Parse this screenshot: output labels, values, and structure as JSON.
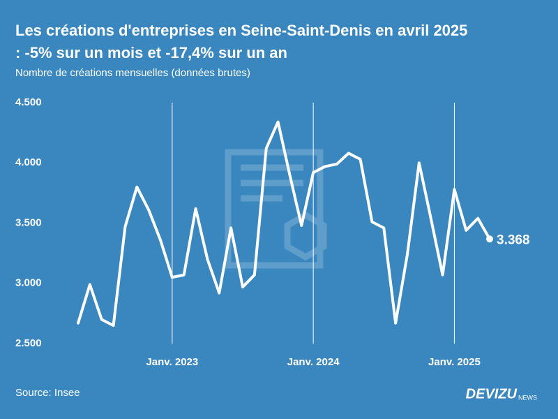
{
  "chart_data": {
    "type": "line",
    "title": [
      "Les créations d'entreprises en Seine-Saint-Denis en avril 2025",
      ": -5% sur un mois et -17,4% sur un an"
    ],
    "subtitle": "Nombre de créations mensuelles (données brutes)",
    "source": "Source: Insee",
    "brand": "DEVIZU",
    "brand_suffix": "NEWS",
    "categories": [
      null,
      null,
      null,
      null,
      null,
      null,
      null,
      null,
      "Janv. 2023",
      null,
      null,
      null,
      null,
      null,
      null,
      null,
      null,
      null,
      null,
      null,
      "Janv. 2024",
      null,
      null,
      null,
      null,
      null,
      null,
      null,
      null,
      null,
      null,
      null,
      "Janv. 2025",
      null,
      null,
      null
    ],
    "values": [
      2670,
      2990,
      2700,
      2650,
      3470,
      3800,
      3610,
      3360,
      3050,
      3070,
      3620,
      3200,
      2920,
      3460,
      2970,
      3070,
      4120,
      4340,
      3900,
      3480,
      3920,
      3970,
      3990,
      4080,
      4030,
      3510,
      3460,
      2670,
      3240,
      4000,
      3540,
      3070,
      3780,
      3440,
      3540,
      3368
    ],
    "value_labels": [
      null,
      null,
      null,
      null,
      null,
      null,
      null,
      null,
      null,
      null,
      null,
      null,
      null,
      null,
      null,
      null,
      null,
      null,
      null,
      null,
      null,
      null,
      null,
      null,
      null,
      null,
      null,
      null,
      null,
      null,
      null,
      null,
      null,
      null,
      null,
      "3.368"
    ],
    "color": "#ffffff",
    "ylim": [
      2500,
      4500
    ],
    "yticks": [
      {
        "value": 2500,
        "label": "2.500"
      },
      {
        "value": 3000,
        "label": "3.000"
      },
      {
        "value": 3500,
        "label": "3.500"
      },
      {
        "value": 4000,
        "label": "4.000"
      },
      {
        "value": 4500,
        "label": "4.500"
      }
    ],
    "grid": "x"
  }
}
